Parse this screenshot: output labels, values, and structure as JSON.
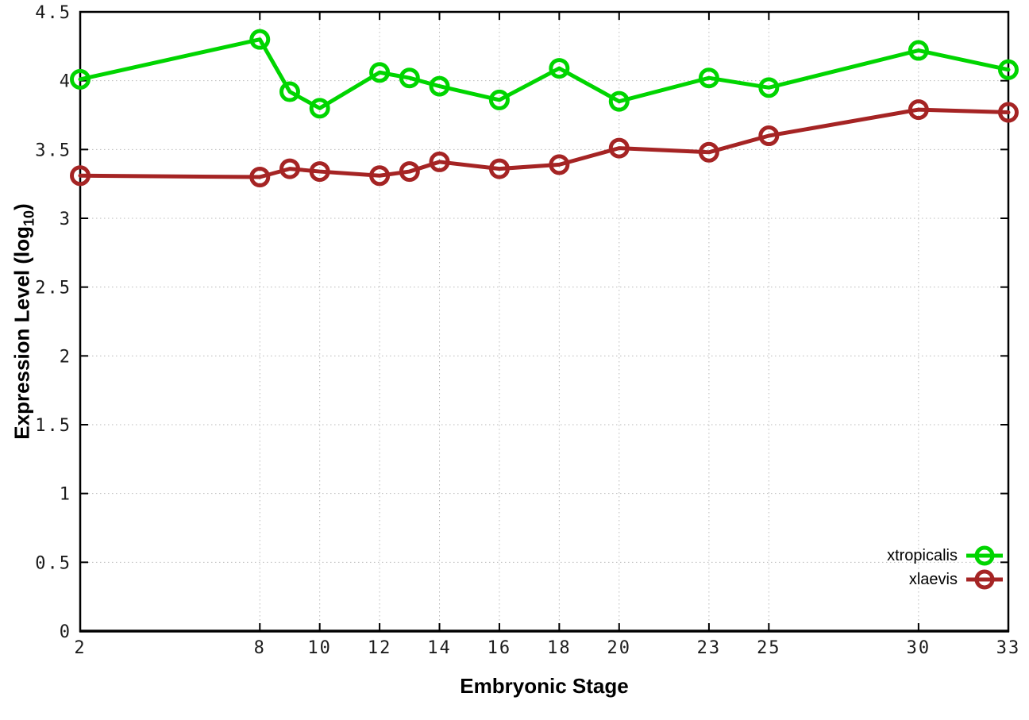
{
  "figure": {
    "xlabel": "Embryonic Stage",
    "ylabel_prefix": "Expression Level (log",
    "ylabel_sub": "10",
    "ylabel_suffix": ")"
  },
  "chart_data": {
    "type": "line",
    "title": "",
    "xlabel": "Embryonic Stage",
    "ylabel": "Expression Level (log10)",
    "x": [
      2,
      8,
      9,
      10,
      12,
      13,
      14,
      16,
      18,
      20,
      23,
      25,
      30,
      33
    ],
    "series": [
      {
        "name": "xtropicalis",
        "color": "#00d500",
        "values": [
          4.01,
          4.3,
          3.92,
          3.8,
          4.06,
          4.02,
          3.96,
          3.86,
          4.09,
          3.85,
          4.02,
          3.95,
          4.22,
          4.08
        ]
      },
      {
        "name": "xlaevis",
        "color": "#a52424",
        "values": [
          3.31,
          3.3,
          3.36,
          3.34,
          3.31,
          3.34,
          3.41,
          3.36,
          3.39,
          3.51,
          3.48,
          3.6,
          3.79,
          3.77
        ]
      }
    ],
    "xlim": [
      2,
      33
    ],
    "ylim": [
      0,
      4.5
    ],
    "xticks": [
      2,
      8,
      10,
      12,
      14,
      16,
      18,
      20,
      23,
      25,
      30,
      33
    ],
    "yticks": [
      0,
      0.5,
      1,
      1.5,
      2,
      2.5,
      3,
      3.5,
      4,
      4.5
    ],
    "grid": true,
    "grid_style": "dotted",
    "legend_position": "bottom-right-inside",
    "marker": "open-circle",
    "line_width": 5,
    "background": "#ffffff",
    "border_color": "#000000",
    "grid_color": "#b9b9b9"
  }
}
